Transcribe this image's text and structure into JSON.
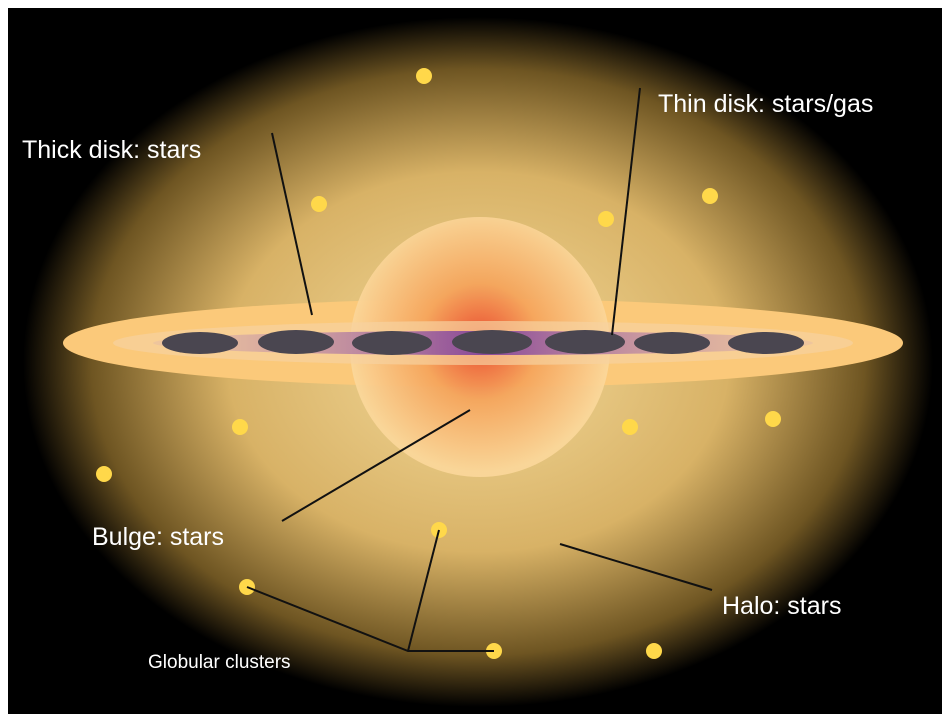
{
  "labels": [
    {
      "text": "Thick disk: stars"
    },
    {
      "text": "Thin disk: stars/gas"
    },
    {
      "text": "Bulge: stars"
    },
    {
      "text": "Halo: stars"
    },
    {
      "text": "Globular clusters"
    }
  ]
}
